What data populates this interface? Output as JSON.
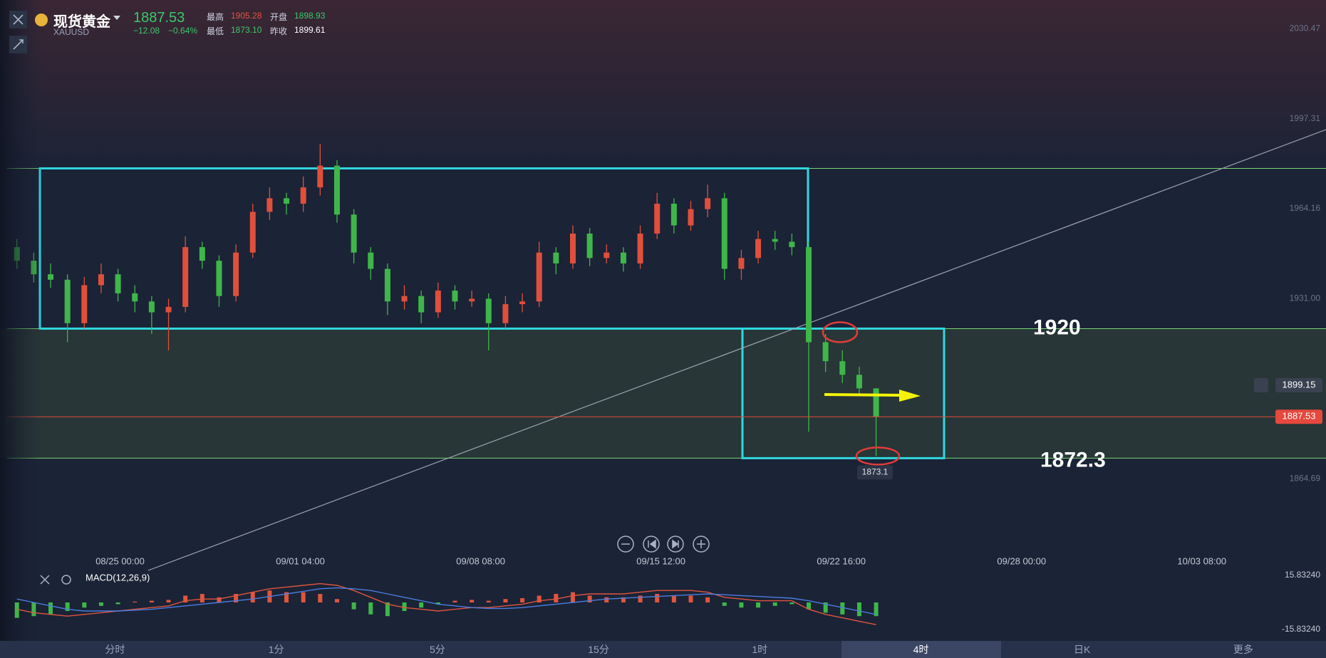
{
  "header": {
    "name": "现货黄金",
    "symbol": "XAUUSD",
    "price": "1887.53",
    "change": "−12.08",
    "change_pct": "−0.64%",
    "high_label": "最高",
    "high": "1905.28",
    "open_label": "开盘",
    "open": "1898.93",
    "low_label": "最低",
    "low": "1873.10",
    "prev_label": "昨收",
    "prev": "1899.61"
  },
  "chart_data": [
    {
      "type": "candlestick",
      "ylim": [
        1837,
        2041
      ],
      "yticks": [
        2030.47,
        1997.31,
        1964.16,
        {
          "value": 1931,
          "label": "1931.00"
        },
        1864.69
      ],
      "x_labels": [
        "08/25 00:00",
        "09/01 04:00",
        "09/08 08:00",
        "09/15 12:00",
        "09/22 16:00",
        "09/28 00:00",
        "10/03 08:00"
      ],
      "up_color": "#e04f3c",
      "down_color": "#3fb64a",
      "ohlc": [
        [
          1950,
          1953,
          1942,
          1945
        ],
        [
          1945,
          1948,
          1937,
          1940
        ],
        [
          1940,
          1944,
          1935,
          1938
        ],
        [
          1938,
          1940,
          1915,
          1922
        ],
        [
          1922,
          1939,
          1920,
          1936
        ],
        [
          1936,
          1944,
          1933,
          1940
        ],
        [
          1940,
          1942,
          1930,
          1933
        ],
        [
          1933,
          1936,
          1926,
          1930
        ],
        [
          1930,
          1932,
          1918,
          1926
        ],
        [
          1926,
          1931,
          1912,
          1928
        ],
        [
          1928,
          1954,
          1926,
          1950
        ],
        [
          1950,
          1952,
          1942,
          1945
        ],
        [
          1945,
          1947,
          1928,
          1932
        ],
        [
          1932,
          1951,
          1930,
          1948
        ],
        [
          1948,
          1966,
          1946,
          1963
        ],
        [
          1963,
          1972,
          1960,
          1968
        ],
        [
          1968,
          1970,
          1962,
          1966
        ],
        [
          1966,
          1976,
          1963,
          1972
        ],
        [
          1972,
          1988,
          1969,
          1980
        ],
        [
          1980,
          1982,
          1959,
          1962
        ],
        [
          1962,
          1964,
          1944,
          1948
        ],
        [
          1948,
          1950,
          1938,
          1942
        ],
        [
          1942,
          1944,
          1925,
          1930
        ],
        [
          1930,
          1936,
          1927,
          1932
        ],
        [
          1932,
          1934,
          1922,
          1926
        ],
        [
          1926,
          1937,
          1924,
          1934
        ],
        [
          1934,
          1936,
          1927,
          1930
        ],
        [
          1930,
          1934,
          1928,
          1931
        ],
        [
          1931,
          1933,
          1912,
          1922
        ],
        [
          1922,
          1932,
          1920,
          1929
        ],
        [
          1929,
          1933,
          1926,
          1930
        ],
        [
          1930,
          1952,
          1928,
          1948
        ],
        [
          1948,
          1950,
          1940,
          1944
        ],
        [
          1944,
          1958,
          1942,
          1955
        ],
        [
          1955,
          1957,
          1943,
          1946
        ],
        [
          1946,
          1951,
          1944,
          1948
        ],
        [
          1948,
          1950,
          1941,
          1944
        ],
        [
          1944,
          1958,
          1942,
          1955
        ],
        [
          1955,
          1970,
          1953,
          1966
        ],
        [
          1966,
          1968,
          1955,
          1958
        ],
        [
          1958,
          1967,
          1956,
          1964
        ],
        [
          1964,
          1973,
          1961,
          1968
        ],
        [
          1968,
          1970,
          1938,
          1942
        ],
        [
          1942,
          1949,
          1938,
          1946
        ],
        [
          1946,
          1956,
          1944,
          1953
        ],
        [
          1953,
          1956,
          1949,
          1952
        ],
        [
          1952,
          1955,
          1947,
          1950
        ],
        [
          1950,
          1952,
          1882,
          1915
        ],
        [
          1915,
          1918,
          1904,
          1908
        ],
        [
          1908,
          1912,
          1900,
          1903
        ],
        [
          1903,
          1906,
          1896,
          1898
        ],
        [
          1898,
          1898,
          1873.1,
          1887.53
        ]
      ],
      "horizontal_lines": [
        1979,
        1920,
        1872.3
      ],
      "annotations": [
        {
          "text": "1920",
          "value": 1920
        },
        {
          "text": "1872.3",
          "value": 1872.3
        }
      ],
      "price_tags": [
        {
          "value": 1899.15,
          "color": "#3a4150"
        },
        {
          "value": 1887.53,
          "color": "#e5483d"
        }
      ],
      "low_tag": 1873.1
    },
    {
      "type": "macd",
      "title": "MACD(12,26,9)",
      "ylim": [
        -15.8324,
        15.8324
      ],
      "yticks": [
        {
          "value": 15.8324,
          "label": "15.83240"
        },
        {
          "value": -15.8324,
          "label": "-15.83240"
        }
      ],
      "histogram": [
        -9,
        -8,
        -7,
        -5,
        -3,
        -2,
        -1,
        0.5,
        1,
        1.5,
        4,
        5,
        3,
        5,
        6,
        7,
        6,
        6,
        5,
        2,
        -4,
        -7,
        -8,
        -5,
        -3,
        -1,
        1,
        1.5,
        1,
        2,
        2.5,
        4,
        5,
        6,
        4,
        3,
        3,
        4,
        5,
        4,
        4,
        3,
        -2,
        -3,
        -3,
        -2,
        -1,
        -4,
        -6,
        -7,
        -8,
        -8
      ],
      "series": [
        {
          "color": "#e0553e",
          "values": [
            -4,
            -6,
            -7,
            -8,
            -7,
            -6,
            -5,
            -4,
            -3,
            -2,
            1,
            2,
            2,
            4,
            6,
            8,
            9,
            10,
            11,
            10,
            7,
            3,
            -1,
            -3,
            -4,
            -5,
            -4,
            -3,
            -3,
            -2,
            -1,
            1,
            2,
            4,
            5,
            5,
            5,
            6,
            7,
            7,
            7,
            6,
            3,
            2,
            1,
            1,
            1,
            -4,
            -7,
            -9,
            -11,
            -13
          ]
        },
        {
          "color": "#4a7de0",
          "values": [
            2,
            0,
            -2,
            -4,
            -5,
            -5,
            -5,
            -4.5,
            -4,
            -3,
            -2,
            -1,
            0,
            1,
            2,
            3.5,
            5,
            6.5,
            8,
            8.5,
            8,
            7,
            5,
            3,
            1,
            -1,
            -2,
            -3,
            -3.5,
            -3.5,
            -3,
            -2,
            -1,
            0,
            1,
            2,
            2.5,
            3,
            3.5,
            4,
            4.5,
            5,
            4.5,
            4,
            3.5,
            3,
            2.5,
            1,
            -1,
            -3,
            -5,
            -7
          ]
        }
      ]
    }
  ],
  "tabs": [
    "分时",
    "1分",
    "5分",
    "15分",
    "1时",
    "4时",
    "日K",
    "更多"
  ]
}
